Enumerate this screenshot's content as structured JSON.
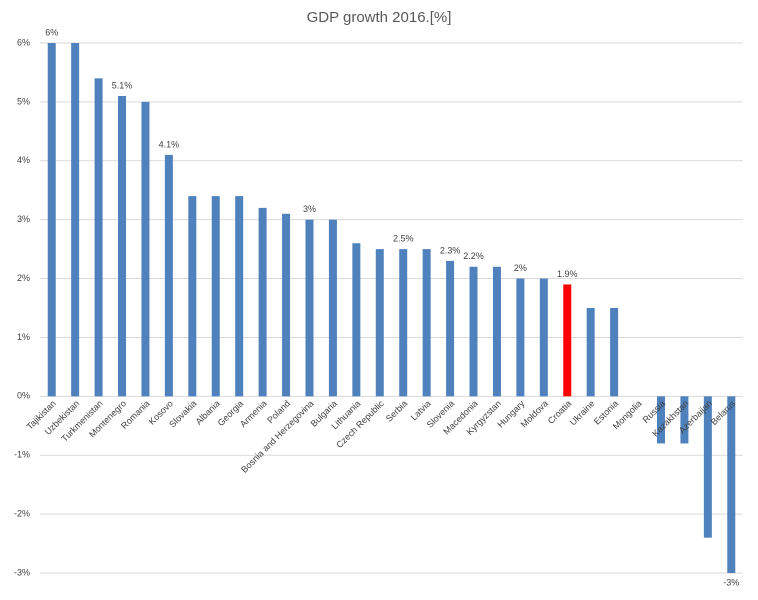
{
  "chart_data": {
    "type": "bar",
    "title": "GDP growth 2016.[%]",
    "categories": [
      "Tajikistan",
      "Uzbekistan",
      "Turkmenistan",
      "Montenegro",
      "Romania",
      "Kosovo",
      "Slovakia",
      "Albania",
      "Georgia",
      "Armenia",
      "Poland",
      "Bosnia and Herzegovina",
      "Bulgaria",
      "Lithuania",
      "Czech Republic",
      "Serbia",
      "Latvia",
      "Slovenia",
      "Macedonia",
      "Kyrgyzstan",
      "Hungary",
      "Moldova",
      "Croatia",
      "Ukraine",
      "Estonia",
      "Mongolia",
      "Russia",
      "Kazakhstan",
      "Azerbaijan",
      "Belarus"
    ],
    "values": [
      6,
      6,
      5.4,
      5.1,
      5,
      4.1,
      3.4,
      3.4,
      3.4,
      3.2,
      3.1,
      3,
      3,
      2.6,
      2.5,
      2.5,
      2.5,
      2.3,
      2.2,
      2.2,
      2,
      2,
      1.9,
      1.5,
      1.5,
      0,
      -0.8,
      -0.8,
      -2.4,
      -3
    ],
    "value_labels": [
      "6%",
      null,
      null,
      "5.1%",
      null,
      "4.1%",
      null,
      null,
      null,
      null,
      null,
      "3%",
      null,
      null,
      null,
      "2.5%",
      null,
      "2.3%",
      "2.2%",
      null,
      "2%",
      null,
      "1.9%",
      null,
      null,
      null,
      null,
      null,
      null,
      "-3%"
    ],
    "colors": [
      "#4f81bd",
      "#4f81bd",
      "#4f81bd",
      "#4f81bd",
      "#4f81bd",
      "#4f81bd",
      "#4f81bd",
      "#4f81bd",
      "#4f81bd",
      "#4f81bd",
      "#4f81bd",
      "#4f81bd",
      "#4f81bd",
      "#4f81bd",
      "#4f81bd",
      "#4f81bd",
      "#4f81bd",
      "#4f81bd",
      "#4f81bd",
      "#4f81bd",
      "#4f81bd",
      "#4f81bd",
      "#ff0000",
      "#4f81bd",
      "#4f81bd",
      "#4f81bd",
      "#4f81bd",
      "#4f81bd",
      "#4f81bd",
      "#4f81bd"
    ],
    "ylim": [
      -3,
      6
    ],
    "yticks": [
      {
        "value": -3,
        "label": "-3%"
      },
      {
        "value": -2,
        "label": "-2%"
      },
      {
        "value": -1,
        "label": "-1%"
      },
      {
        "value": 0,
        "label": "0%"
      },
      {
        "value": 1,
        "label": "1%"
      },
      {
        "value": 2,
        "label": "2%"
      },
      {
        "value": 3,
        "label": "3%"
      },
      {
        "value": 4,
        "label": "4%"
      },
      {
        "value": 5,
        "label": "5%"
      },
      {
        "value": 6,
        "label": "6%"
      }
    ],
    "grid": true
  }
}
